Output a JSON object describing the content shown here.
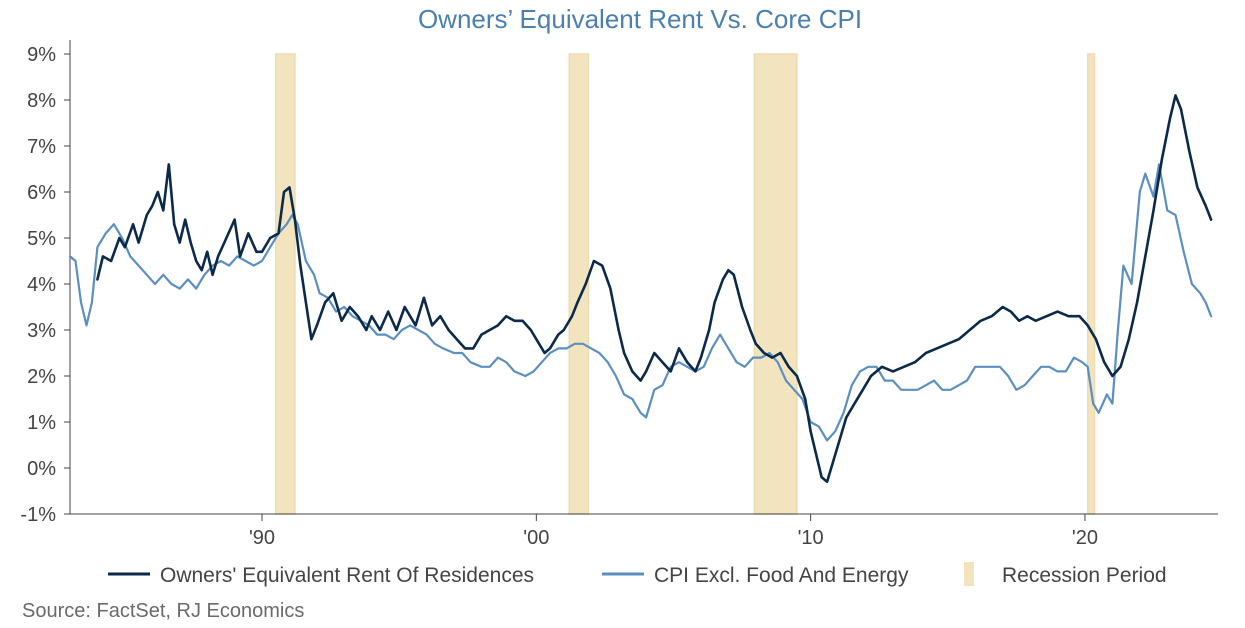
{
  "chart_data": {
    "type": "line",
    "title": "Owners’ Equivalent Rent Vs. Core CPI",
    "source": "Source: FactSet, RJ Economics",
    "ylim": [
      -1,
      9
    ],
    "xlim": [
      1983.0,
      2024.85
    ],
    "y_ticks": [
      "9%",
      "8%",
      "7%",
      "6%",
      "5%",
      "4%",
      "3%",
      "2%",
      "1%",
      "0%",
      "-1%"
    ],
    "x_ticks": [
      {
        "value": 1990,
        "label": "'90"
      },
      {
        "value": 2000,
        "label": "'00"
      },
      {
        "value": 2010,
        "label": "'10"
      },
      {
        "value": 2020,
        "label": "'20"
      }
    ],
    "grid": false,
    "legend_position": "bottom",
    "colors": {
      "oer": "#0b2a4a",
      "core": "#5b8fc0",
      "recession": "#f3e4c0",
      "title": "#4a7fb0"
    },
    "recessions": [
      {
        "start": 1990.5,
        "end": 1991.2
      },
      {
        "start": 2001.2,
        "end": 2001.9
      },
      {
        "start": 2007.95,
        "end": 2009.5
      },
      {
        "start": 2020.1,
        "end": 2020.35
      }
    ],
    "legend": [
      {
        "label": "Owners' Equivalent Rent Of Residences",
        "swatch": "line",
        "color": "#0b2a4a"
      },
      {
        "label": "CPI Excl. Food And Energy",
        "swatch": "line",
        "color": "#5b8fc0"
      },
      {
        "label": "Recession Period",
        "swatch": "box",
        "color": "#f3e4c0"
      }
    ],
    "series": [
      {
        "name": "Owners' Equivalent Rent Of Residences",
        "color": "#0b2a4a",
        "points": [
          [
            1984.0,
            4.1
          ],
          [
            1984.2,
            4.6
          ],
          [
            1984.5,
            4.5
          ],
          [
            1984.8,
            5.0
          ],
          [
            1985.0,
            4.8
          ],
          [
            1985.3,
            5.3
          ],
          [
            1985.5,
            4.9
          ],
          [
            1985.8,
            5.5
          ],
          [
            1986.0,
            5.7
          ],
          [
            1986.2,
            6.0
          ],
          [
            1986.4,
            5.6
          ],
          [
            1986.6,
            6.6
          ],
          [
            1986.8,
            5.3
          ],
          [
            1987.0,
            4.9
          ],
          [
            1987.2,
            5.4
          ],
          [
            1987.4,
            4.9
          ],
          [
            1987.6,
            4.5
          ],
          [
            1987.8,
            4.3
          ],
          [
            1988.0,
            4.7
          ],
          [
            1988.2,
            4.2
          ],
          [
            1988.4,
            4.6
          ],
          [
            1988.7,
            5.0
          ],
          [
            1989.0,
            5.4
          ],
          [
            1989.2,
            4.6
          ],
          [
            1989.5,
            5.1
          ],
          [
            1989.8,
            4.7
          ],
          [
            1990.0,
            4.7
          ],
          [
            1990.3,
            5.0
          ],
          [
            1990.6,
            5.1
          ],
          [
            1990.8,
            6.0
          ],
          [
            1991.0,
            6.1
          ],
          [
            1991.2,
            5.4
          ],
          [
            1991.4,
            4.4
          ],
          [
            1991.6,
            3.6
          ],
          [
            1991.8,
            2.8
          ],
          [
            1992.0,
            3.1
          ],
          [
            1992.3,
            3.6
          ],
          [
            1992.6,
            3.8
          ],
          [
            1992.9,
            3.2
          ],
          [
            1993.2,
            3.5
          ],
          [
            1993.5,
            3.3
          ],
          [
            1993.8,
            3.0
          ],
          [
            1994.0,
            3.3
          ],
          [
            1994.3,
            3.0
          ],
          [
            1994.6,
            3.4
          ],
          [
            1994.9,
            3.0
          ],
          [
            1995.2,
            3.5
          ],
          [
            1995.6,
            3.1
          ],
          [
            1995.9,
            3.7
          ],
          [
            1996.2,
            3.1
          ],
          [
            1996.5,
            3.3
          ],
          [
            1996.8,
            3.0
          ],
          [
            1997.1,
            2.8
          ],
          [
            1997.4,
            2.6
          ],
          [
            1997.7,
            2.6
          ],
          [
            1998.0,
            2.9
          ],
          [
            1998.3,
            3.0
          ],
          [
            1998.6,
            3.1
          ],
          [
            1998.9,
            3.3
          ],
          [
            1999.2,
            3.2
          ],
          [
            1999.5,
            3.2
          ],
          [
            1999.8,
            3.0
          ],
          [
            2000.1,
            2.7
          ],
          [
            2000.3,
            2.5
          ],
          [
            2000.5,
            2.6
          ],
          [
            2000.8,
            2.9
          ],
          [
            2001.0,
            3.0
          ],
          [
            2001.3,
            3.3
          ],
          [
            2001.5,
            3.6
          ],
          [
            2001.8,
            4.0
          ],
          [
            2002.1,
            4.5
          ],
          [
            2002.4,
            4.4
          ],
          [
            2002.7,
            3.9
          ],
          [
            2003.0,
            3.0
          ],
          [
            2003.2,
            2.5
          ],
          [
            2003.5,
            2.1
          ],
          [
            2003.8,
            1.9
          ],
          [
            2004.0,
            2.1
          ],
          [
            2004.3,
            2.5
          ],
          [
            2004.6,
            2.3
          ],
          [
            2004.9,
            2.1
          ],
          [
            2005.2,
            2.6
          ],
          [
            2005.5,
            2.3
          ],
          [
            2005.8,
            2.1
          ],
          [
            2006.0,
            2.4
          ],
          [
            2006.3,
            3.0
          ],
          [
            2006.5,
            3.6
          ],
          [
            2006.8,
            4.1
          ],
          [
            2007.0,
            4.3
          ],
          [
            2007.2,
            4.2
          ],
          [
            2007.5,
            3.5
          ],
          [
            2007.8,
            3.0
          ],
          [
            2008.0,
            2.7
          ],
          [
            2008.3,
            2.5
          ],
          [
            2008.6,
            2.4
          ],
          [
            2008.9,
            2.5
          ],
          [
            2009.2,
            2.2
          ],
          [
            2009.5,
            2.0
          ],
          [
            2009.8,
            1.5
          ],
          [
            2010.0,
            0.8
          ],
          [
            2010.2,
            0.3
          ],
          [
            2010.4,
            -0.2
          ],
          [
            2010.6,
            -0.3
          ],
          [
            2010.8,
            0.1
          ],
          [
            2011.0,
            0.5
          ],
          [
            2011.3,
            1.1
          ],
          [
            2011.6,
            1.4
          ],
          [
            2011.9,
            1.7
          ],
          [
            2012.2,
            2.0
          ],
          [
            2012.6,
            2.2
          ],
          [
            2013.0,
            2.1
          ],
          [
            2013.4,
            2.2
          ],
          [
            2013.8,
            2.3
          ],
          [
            2014.2,
            2.5
          ],
          [
            2014.6,
            2.6
          ],
          [
            2015.0,
            2.7
          ],
          [
            2015.4,
            2.8
          ],
          [
            2015.8,
            3.0
          ],
          [
            2016.2,
            3.2
          ],
          [
            2016.6,
            3.3
          ],
          [
            2017.0,
            3.5
          ],
          [
            2017.3,
            3.4
          ],
          [
            2017.6,
            3.2
          ],
          [
            2017.9,
            3.3
          ],
          [
            2018.2,
            3.2
          ],
          [
            2018.6,
            3.3
          ],
          [
            2019.0,
            3.4
          ],
          [
            2019.4,
            3.3
          ],
          [
            2019.8,
            3.3
          ],
          [
            2020.1,
            3.1
          ],
          [
            2020.4,
            2.8
          ],
          [
            2020.7,
            2.3
          ],
          [
            2021.0,
            2.0
          ],
          [
            2021.3,
            2.2
          ],
          [
            2021.6,
            2.8
          ],
          [
            2021.9,
            3.6
          ],
          [
            2022.2,
            4.6
          ],
          [
            2022.5,
            5.6
          ],
          [
            2022.8,
            6.7
          ],
          [
            2023.1,
            7.6
          ],
          [
            2023.3,
            8.1
          ],
          [
            2023.5,
            7.8
          ],
          [
            2023.8,
            6.9
          ],
          [
            2024.1,
            6.1
          ],
          [
            2024.4,
            5.7
          ],
          [
            2024.6,
            5.4
          ]
        ]
      },
      {
        "name": "CPI Excl. Food And Energy",
        "color": "#5b8fc0",
        "points": [
          [
            1983.0,
            4.6
          ],
          [
            1983.2,
            4.5
          ],
          [
            1983.4,
            3.6
          ],
          [
            1983.6,
            3.1
          ],
          [
            1983.8,
            3.6
          ],
          [
            1984.0,
            4.8
          ],
          [
            1984.3,
            5.1
          ],
          [
            1984.6,
            5.3
          ],
          [
            1984.9,
            5.0
          ],
          [
            1985.2,
            4.6
          ],
          [
            1985.5,
            4.4
          ],
          [
            1985.8,
            4.2
          ],
          [
            1986.1,
            4.0
          ],
          [
            1986.4,
            4.2
          ],
          [
            1986.7,
            4.0
          ],
          [
            1987.0,
            3.9
          ],
          [
            1987.3,
            4.1
          ],
          [
            1987.6,
            3.9
          ],
          [
            1987.9,
            4.2
          ],
          [
            1988.2,
            4.4
          ],
          [
            1988.5,
            4.5
          ],
          [
            1988.8,
            4.4
          ],
          [
            1989.1,
            4.6
          ],
          [
            1989.4,
            4.5
          ],
          [
            1989.7,
            4.4
          ],
          [
            1990.0,
            4.5
          ],
          [
            1990.3,
            4.8
          ],
          [
            1990.6,
            5.1
          ],
          [
            1990.9,
            5.3
          ],
          [
            1991.1,
            5.5
          ],
          [
            1991.3,
            5.3
          ],
          [
            1991.6,
            4.5
          ],
          [
            1991.9,
            4.2
          ],
          [
            1992.1,
            3.8
          ],
          [
            1992.4,
            3.7
          ],
          [
            1992.7,
            3.4
          ],
          [
            1993.0,
            3.5
          ],
          [
            1993.3,
            3.3
          ],
          [
            1993.6,
            3.2
          ],
          [
            1993.9,
            3.1
          ],
          [
            1994.2,
            2.9
          ],
          [
            1994.5,
            2.9
          ],
          [
            1994.8,
            2.8
          ],
          [
            1995.1,
            3.0
          ],
          [
            1995.4,
            3.1
          ],
          [
            1995.7,
            3.0
          ],
          [
            1996.0,
            2.9
          ],
          [
            1996.3,
            2.7
          ],
          [
            1996.6,
            2.6
          ],
          [
            1997.0,
            2.5
          ],
          [
            1997.3,
            2.5
          ],
          [
            1997.6,
            2.3
          ],
          [
            1998.0,
            2.2
          ],
          [
            1998.3,
            2.2
          ],
          [
            1998.6,
            2.4
          ],
          [
            1998.9,
            2.3
          ],
          [
            1999.2,
            2.1
          ],
          [
            1999.6,
            2.0
          ],
          [
            1999.9,
            2.1
          ],
          [
            2000.2,
            2.3
          ],
          [
            2000.5,
            2.5
          ],
          [
            2000.8,
            2.6
          ],
          [
            2001.1,
            2.6
          ],
          [
            2001.4,
            2.7
          ],
          [
            2001.7,
            2.7
          ],
          [
            2002.0,
            2.6
          ],
          [
            2002.3,
            2.5
          ],
          [
            2002.6,
            2.3
          ],
          [
            2002.9,
            2.0
          ],
          [
            2003.2,
            1.6
          ],
          [
            2003.5,
            1.5
          ],
          [
            2003.8,
            1.2
          ],
          [
            2004.0,
            1.1
          ],
          [
            2004.3,
            1.7
          ],
          [
            2004.6,
            1.8
          ],
          [
            2004.9,
            2.2
          ],
          [
            2005.2,
            2.3
          ],
          [
            2005.5,
            2.2
          ],
          [
            2005.8,
            2.1
          ],
          [
            2006.1,
            2.2
          ],
          [
            2006.4,
            2.6
          ],
          [
            2006.7,
            2.9
          ],
          [
            2007.0,
            2.6
          ],
          [
            2007.3,
            2.3
          ],
          [
            2007.6,
            2.2
          ],
          [
            2007.9,
            2.4
          ],
          [
            2008.2,
            2.4
          ],
          [
            2008.5,
            2.5
          ],
          [
            2008.8,
            2.3
          ],
          [
            2009.1,
            1.9
          ],
          [
            2009.4,
            1.7
          ],
          [
            2009.7,
            1.5
          ],
          [
            2010.0,
            1.0
          ],
          [
            2010.3,
            0.9
          ],
          [
            2010.6,
            0.6
          ],
          [
            2010.9,
            0.8
          ],
          [
            2011.2,
            1.2
          ],
          [
            2011.5,
            1.8
          ],
          [
            2011.8,
            2.1
          ],
          [
            2012.1,
            2.2
          ],
          [
            2012.4,
            2.2
          ],
          [
            2012.7,
            1.9
          ],
          [
            2013.0,
            1.9
          ],
          [
            2013.3,
            1.7
          ],
          [
            2013.6,
            1.7
          ],
          [
            2013.9,
            1.7
          ],
          [
            2014.2,
            1.8
          ],
          [
            2014.5,
            1.9
          ],
          [
            2014.8,
            1.7
          ],
          [
            2015.1,
            1.7
          ],
          [
            2015.4,
            1.8
          ],
          [
            2015.7,
            1.9
          ],
          [
            2016.0,
            2.2
          ],
          [
            2016.3,
            2.2
          ],
          [
            2016.6,
            2.2
          ],
          [
            2016.9,
            2.2
          ],
          [
            2017.2,
            2.0
          ],
          [
            2017.5,
            1.7
          ],
          [
            2017.8,
            1.8
          ],
          [
            2018.1,
            2.0
          ],
          [
            2018.4,
            2.2
          ],
          [
            2018.7,
            2.2
          ],
          [
            2019.0,
            2.1
          ],
          [
            2019.3,
            2.1
          ],
          [
            2019.6,
            2.4
          ],
          [
            2019.9,
            2.3
          ],
          [
            2020.1,
            2.2
          ],
          [
            2020.3,
            1.4
          ],
          [
            2020.5,
            1.2
          ],
          [
            2020.8,
            1.6
          ],
          [
            2021.0,
            1.4
          ],
          [
            2021.2,
            3.0
          ],
          [
            2021.4,
            4.4
          ],
          [
            2021.7,
            4.0
          ],
          [
            2022.0,
            6.0
          ],
          [
            2022.2,
            6.4
          ],
          [
            2022.5,
            5.9
          ],
          [
            2022.7,
            6.6
          ],
          [
            2023.0,
            5.6
          ],
          [
            2023.3,
            5.5
          ],
          [
            2023.6,
            4.7
          ],
          [
            2023.9,
            4.0
          ],
          [
            2024.2,
            3.8
          ],
          [
            2024.4,
            3.6
          ],
          [
            2024.6,
            3.3
          ]
        ]
      }
    ]
  }
}
